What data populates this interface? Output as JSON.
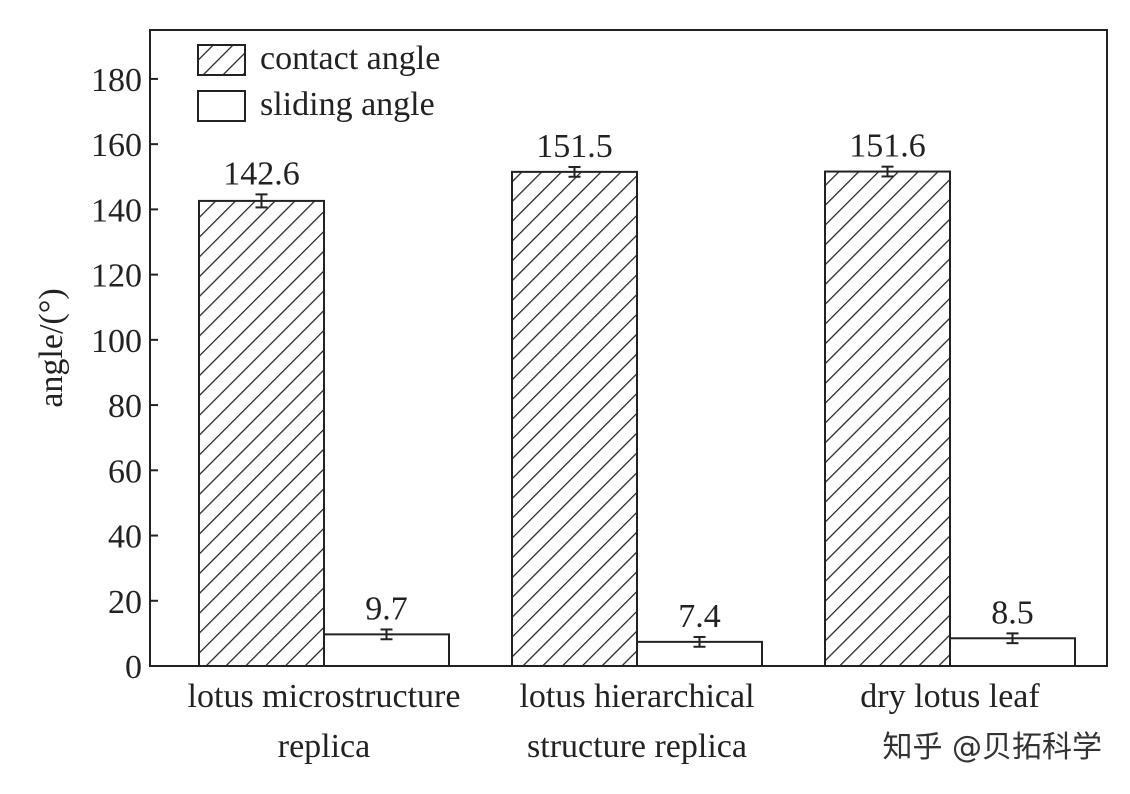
{
  "chart_data": {
    "type": "bar",
    "y_label": "angle/(°)",
    "categories": [
      "lotus microstructure\nreplica",
      "lotus hierarchical\nstructure replica",
      "dry lotus leaf"
    ],
    "series": [
      {
        "name": "contact angle",
        "pattern": "hatch",
        "values": [
          142.6,
          151.5,
          151.6
        ],
        "errors": [
          2,
          1.5,
          1.5
        ]
      },
      {
        "name": "sliding angle",
        "pattern": "none",
        "values": [
          9.7,
          7.4,
          8.5
        ],
        "errors": [
          1.5,
          1.5,
          1.5
        ]
      }
    ],
    "ylim": [
      0,
      195
    ],
    "yticks": [
      0,
      20,
      40,
      60,
      80,
      100,
      120,
      140,
      160,
      180
    ],
    "legend": "upper left"
  },
  "watermark": "知乎 @贝拓科学"
}
